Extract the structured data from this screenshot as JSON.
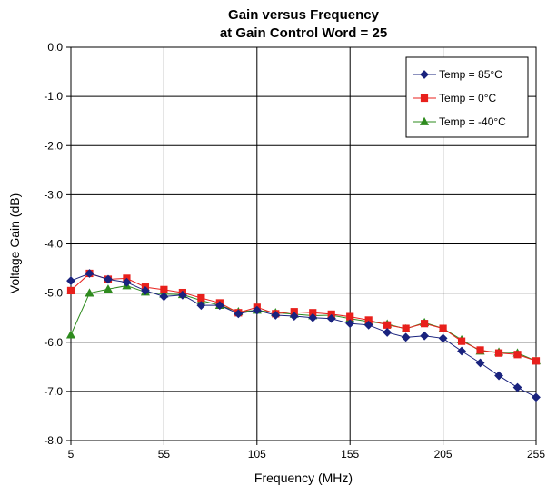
{
  "chart_data": {
    "type": "line",
    "title_line1": "Gain versus Frequency",
    "title_line2": "at Gain Control Word = 25",
    "xlabel": "Frequency (MHz)",
    "ylabel": "Voltage Gain (dB)",
    "xlim": [
      5,
      255
    ],
    "ylim": [
      -8.0,
      0.0
    ],
    "x_ticks": [
      5,
      55,
      105,
      155,
      205,
      255
    ],
    "x_tick_labels": [
      "5",
      "55",
      "105",
      "155",
      "205",
      "255"
    ],
    "y_ticks": [
      0,
      -1,
      -2,
      -3,
      -4,
      -5,
      -6,
      -7,
      -8
    ],
    "y_tick_labels": [
      "0.0",
      "-1.0",
      "-2.0",
      "-3.0",
      "-4.0",
      "-5.0",
      "-6.0",
      "-7.0",
      "-8.0"
    ],
    "grid": true,
    "legend_position": "top-right",
    "x": [
      5,
      15,
      25,
      35,
      45,
      55,
      65,
      75,
      85,
      95,
      105,
      115,
      125,
      135,
      145,
      155,
      165,
      175,
      185,
      195,
      205,
      215,
      225,
      235,
      245,
      255
    ],
    "series": [
      {
        "name": "Temp = 85°C",
        "color": "#1a237e",
        "marker": "diamond",
        "values": [
          -4.75,
          -4.6,
          -4.72,
          -4.78,
          -4.95,
          -5.07,
          -5.04,
          -5.25,
          -5.25,
          -5.42,
          -5.35,
          -5.45,
          -5.47,
          -5.5,
          -5.52,
          -5.62,
          -5.65,
          -5.8,
          -5.9,
          -5.87,
          -5.92,
          -6.18,
          -6.42,
          -6.68,
          -6.92,
          -7.12
        ]
      },
      {
        "name": "Temp = 0°C",
        "color": "#e8201c",
        "marker": "square",
        "values": [
          -4.95,
          -4.6,
          -4.72,
          -4.7,
          -4.88,
          -4.93,
          -4.99,
          -5.1,
          -5.2,
          -5.4,
          -5.29,
          -5.42,
          -5.38,
          -5.4,
          -5.43,
          -5.48,
          -5.55,
          -5.65,
          -5.72,
          -5.62,
          -5.72,
          -5.98,
          -6.16,
          -6.22,
          -6.25,
          -6.38
        ]
      },
      {
        "name": "Temp = -40°C",
        "color": "#2e8b1e",
        "marker": "triangle",
        "values": [
          -5.85,
          -5.0,
          -4.92,
          -4.85,
          -4.98,
          -5.02,
          -5.03,
          -5.15,
          -5.25,
          -5.38,
          -5.35,
          -5.4,
          -5.43,
          -5.46,
          -5.45,
          -5.52,
          -5.58,
          -5.63,
          -5.73,
          -5.6,
          -5.72,
          -5.95,
          -6.18,
          -6.2,
          -6.22,
          -6.38
        ]
      }
    ]
  }
}
